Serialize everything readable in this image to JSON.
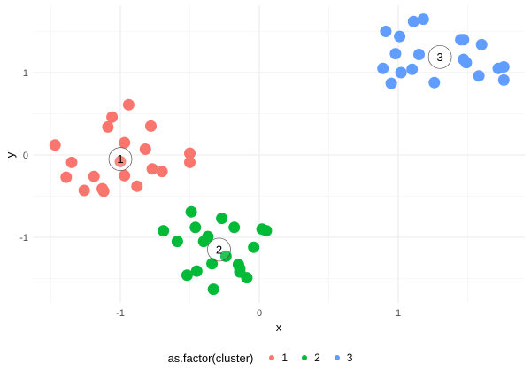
{
  "chart_data": {
    "type": "scatter",
    "title": "",
    "xlabel": "x",
    "ylabel": "y",
    "xlim": [
      -1.62,
      1.91
    ],
    "ylim": [
      -1.8,
      1.82
    ],
    "x_ticks": [
      -1,
      0,
      1
    ],
    "x_tick_labels": [
      "-1",
      "0",
      "1"
    ],
    "y_ticks": [
      -1,
      0,
      1
    ],
    "y_tick_labels": [
      "-1",
      "0",
      "1"
    ],
    "x_minor_gridlines": [
      -1.5,
      -0.5,
      0.5,
      1.5
    ],
    "y_minor_gridlines": [
      -1.5,
      -0.5,
      0.5,
      1.5
    ],
    "grid": true,
    "legend_position": "bottom",
    "legend_title": "as.factor(cluster)",
    "series": [
      {
        "name": "1",
        "color": "#F8766D",
        "points": [
          [
            -1.47,
            0.12
          ],
          [
            -1.35,
            -0.09
          ],
          [
            -1.39,
            -0.27
          ],
          [
            -1.26,
            -0.43
          ],
          [
            -1.19,
            -0.26
          ],
          [
            -1.13,
            -0.41
          ],
          [
            -1.12,
            -0.44
          ],
          [
            -1.09,
            0.34
          ],
          [
            -1.06,
            0.46
          ],
          [
            -0.94,
            0.61
          ],
          [
            -0.97,
            0.15
          ],
          [
            -1.0,
            -0.08
          ],
          [
            -0.97,
            -0.25
          ],
          [
            -0.88,
            -0.38
          ],
          [
            -0.82,
            0.07
          ],
          [
            -0.78,
            0.35
          ],
          [
            -0.77,
            -0.17
          ],
          [
            -0.7,
            -0.2
          ],
          [
            -0.5,
            0.02
          ],
          [
            -0.5,
            -0.09
          ]
        ]
      },
      {
        "name": "2",
        "color": "#00BA38",
        "points": [
          [
            -0.69,
            -0.92
          ],
          [
            -0.59,
            -1.05
          ],
          [
            -0.52,
            -1.46
          ],
          [
            -0.49,
            -0.69
          ],
          [
            -0.46,
            -0.88
          ],
          [
            -0.45,
            -1.41
          ],
          [
            -0.4,
            -1.05
          ],
          [
            -0.37,
            -0.99
          ],
          [
            -0.34,
            -1.32
          ],
          [
            -0.33,
            -1.63
          ],
          [
            -0.27,
            -0.77
          ],
          [
            -0.24,
            -1.23
          ],
          [
            -0.18,
            -0.88
          ],
          [
            -0.15,
            -1.33
          ],
          [
            -0.14,
            -1.38
          ],
          [
            -0.14,
            -1.42
          ],
          [
            -0.09,
            -1.49
          ],
          [
            -0.04,
            -1.12
          ],
          [
            0.02,
            -0.9
          ],
          [
            0.05,
            -0.92
          ]
        ]
      },
      {
        "name": "3",
        "color": "#619CFF",
        "points": [
          [
            0.89,
            1.05
          ],
          [
            0.91,
            1.5
          ],
          [
            0.95,
            0.87
          ],
          [
            0.98,
            1.23
          ],
          [
            1.01,
            1.44
          ],
          [
            1.02,
            1.0
          ],
          [
            1.1,
            1.04
          ],
          [
            1.11,
            1.62
          ],
          [
            1.15,
            1.22
          ],
          [
            1.18,
            1.65
          ],
          [
            1.26,
            0.88
          ],
          [
            1.45,
            1.4
          ],
          [
            1.47,
            1.16
          ],
          [
            1.49,
            1.12
          ],
          [
            1.47,
            1.4
          ],
          [
            1.58,
            0.96
          ],
          [
            1.6,
            1.34
          ],
          [
            1.72,
            1.05
          ],
          [
            1.76,
            1.07
          ],
          [
            1.76,
            0.91
          ]
        ]
      }
    ],
    "centroids": [
      {
        "label": "1",
        "x": -1.0,
        "y": -0.05
      },
      {
        "label": "2",
        "x": -0.29,
        "y": -1.15
      },
      {
        "label": "3",
        "x": 1.3,
        "y": 1.19
      }
    ]
  },
  "legend": {
    "title": "as.factor(cluster)",
    "items": [
      {
        "label": "1",
        "color": "#F8766D"
      },
      {
        "label": "2",
        "color": "#00BA38"
      },
      {
        "label": "3",
        "color": "#619CFF"
      }
    ]
  },
  "axes": {
    "x_title": "x",
    "y_title": "y"
  }
}
